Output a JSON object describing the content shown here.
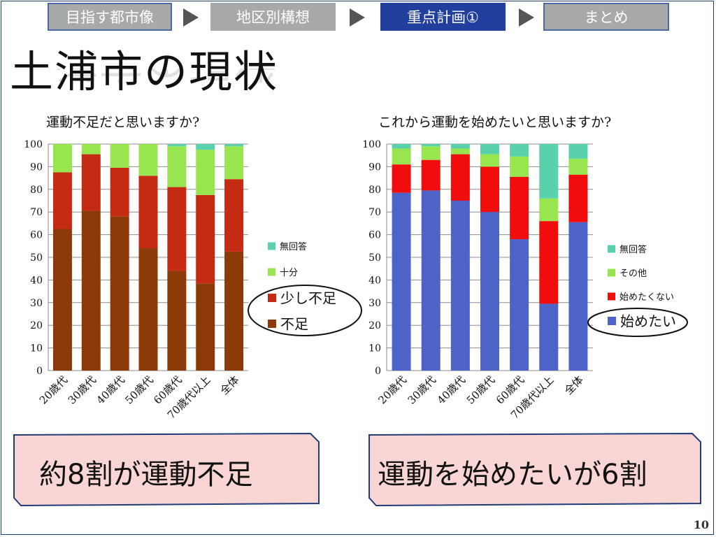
{
  "nav": {
    "items": [
      {
        "label": "目指す都市像",
        "state": "inactive"
      },
      {
        "label": "地区別構想",
        "state": "inactive"
      },
      {
        "label": "重点計画①",
        "state": "active"
      },
      {
        "label": "まとめ",
        "state": "inactive"
      }
    ],
    "arrow_icon": "triangle-right-icon"
  },
  "title": "土浦市の現状",
  "page_number": "10",
  "colors": {
    "nav_active": "#213f9c",
    "nav_inactive": "#a7a9ab",
    "callout_fill": "#f9d6d3",
    "callout_border": "#1f3c78"
  },
  "chart_data": [
    {
      "type": "bar",
      "stacked": true,
      "title": "運動不足だと思いますか?",
      "categories": [
        "20歳代",
        "30歳代",
        "40歳代",
        "50歳代",
        "60歳代",
        "70歳代以上",
        "全体"
      ],
      "series": [
        {
          "name": "不足",
          "color": "#8b3a08",
          "values": [
            62.5,
            70.5,
            68,
            54,
            44,
            38.5,
            52.5
          ]
        },
        {
          "name": "少し不足",
          "color": "#c52a12",
          "values": [
            25,
            25,
            21.5,
            32,
            37,
            39,
            32
          ]
        },
        {
          "name": "十分",
          "color": "#99e550",
          "values": [
            12.5,
            4.5,
            10.5,
            14,
            18,
            20,
            14.5
          ]
        },
        {
          "name": "無回答",
          "color": "#5ad1ad",
          "values": [
            0,
            0,
            0,
            0,
            1,
            2.5,
            1
          ]
        }
      ],
      "ylim": [
        0,
        100
      ],
      "yticks": [
        0,
        10,
        20,
        30,
        40,
        50,
        60,
        70,
        80,
        90,
        100
      ],
      "grid": true,
      "legend_position": "right",
      "callout": "約8割が運動不足"
    },
    {
      "type": "bar",
      "stacked": true,
      "title": "これから運動を始めたいと思いますか?",
      "categories": [
        "20歳代",
        "30歳代",
        "40歳代",
        "50歳代",
        "60歳代",
        "70歳代以上",
        "全体"
      ],
      "series": [
        {
          "name": "始めたい",
          "color": "#4e63c7",
          "values": [
            78.5,
            79.5,
            75,
            70,
            58,
            29.5,
            65.5
          ]
        },
        {
          "name": "始めたくない",
          "color": "#f20d0d",
          "values": [
            12.5,
            13.5,
            20.5,
            20,
            27.5,
            36.5,
            21
          ]
        },
        {
          "name": "その他",
          "color": "#99e550",
          "values": [
            7,
            6,
            2.5,
            5.5,
            9,
            10,
            7
          ]
        },
        {
          "name": "無回答",
          "color": "#5ad1ad",
          "values": [
            2,
            1,
            2,
            4.5,
            5.5,
            24,
            6.5
          ]
        }
      ],
      "ylim": [
        0,
        100
      ],
      "yticks": [
        0,
        10,
        20,
        30,
        40,
        50,
        60,
        70,
        80,
        90,
        100
      ],
      "grid": true,
      "legend_position": "right",
      "callout": "運動を始めたいが6割"
    }
  ]
}
